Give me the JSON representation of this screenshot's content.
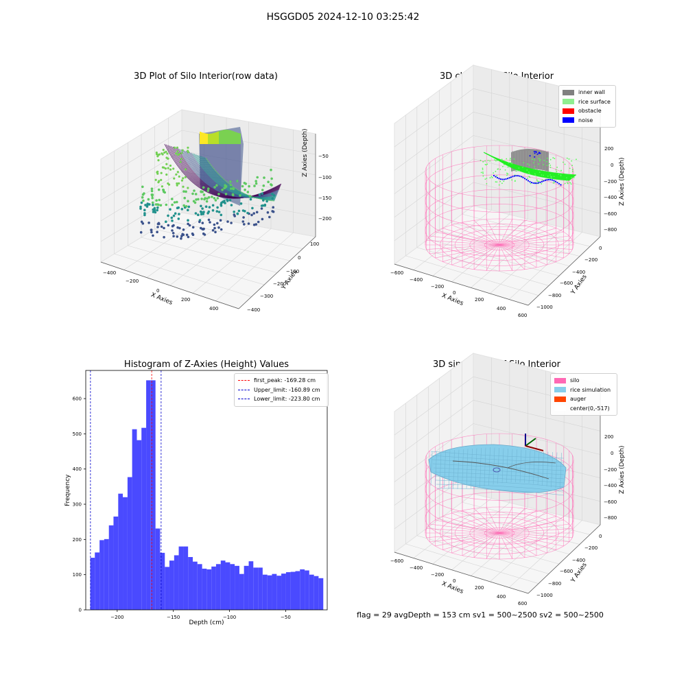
{
  "suptitle": "HSGGD05 2024-12-10 03:25:42",
  "status_line": "flag = 29  avgDepth = 153 cm  sv1 = 500~2500  sv2 = 500~2500",
  "panels": {
    "raw": {
      "title": "3D Plot of Silo Interior(row data)",
      "xlabel": "X Axies",
      "ylabel": "Y Axies",
      "zlabel": "Z Axies (Depth)",
      "xticks": [
        "−400",
        "−200",
        "0",
        "200",
        "400"
      ],
      "yticks": [
        "100",
        "0",
        "−100",
        "−200",
        "−300",
        "−400"
      ],
      "zticks": [
        "−50",
        "−100",
        "−150",
        "−200"
      ]
    },
    "classify": {
      "title": "3D classify of Silo Interior",
      "xlabel": "X Axies",
      "ylabel": "Y Axies",
      "zlabel": "Z Axies (Depth)",
      "xticks": [
        "−600",
        "−400",
        "−200",
        "0",
        "200",
        "400",
        "600"
      ],
      "yticks": [
        "0",
        "−200",
        "−400",
        "−600",
        "−800",
        "−1000"
      ],
      "zticks": [
        "200",
        "0",
        "−200",
        "−400",
        "−600",
        "−800"
      ],
      "legend": [
        {
          "label": "inner wall",
          "color": "#808080"
        },
        {
          "label": "rice surface",
          "color": "#90ee90"
        },
        {
          "label": "obstacle",
          "color": "#ff0000"
        },
        {
          "label": "noise",
          "color": "#0000ff"
        }
      ]
    },
    "simulation": {
      "title": "3D simulation of Silo Interior",
      "xlabel": "X Axies",
      "ylabel": "Y Axies",
      "zlabel": "Z Axies (Depth)",
      "xticks": [
        "−600",
        "−400",
        "−200",
        "0",
        "200",
        "400",
        "600"
      ],
      "yticks": [
        "0",
        "−200",
        "−400",
        "−600",
        "−800",
        "−1000"
      ],
      "zticks": [
        "200",
        "0",
        "−200",
        "−400",
        "−600",
        "−800"
      ],
      "legend": [
        {
          "label": "silo",
          "color": "#ff69b4"
        },
        {
          "label": "rice simulation",
          "color": "#87ceeb"
        },
        {
          "label": "auger",
          "color": "#ff4500"
        },
        {
          "label": "center(0,-517)",
          "color": "#ffffff"
        }
      ]
    }
  },
  "chart_data": {
    "type": "bar",
    "title": "Histogram of Z-Axies (Height) Values",
    "xlabel": "Depth (cm)",
    "ylabel": "Frequency",
    "xlim": [
      -228,
      -13
    ],
    "ylim": [
      0,
      680
    ],
    "xticks": [
      -200,
      -150,
      -100,
      -50
    ],
    "xtick_labels": [
      "−200",
      "−150",
      "−100",
      "−50"
    ],
    "yticks": [
      0,
      100,
      200,
      300,
      400,
      500,
      600
    ],
    "bar_color": "#4a4aff",
    "bin_edges": [
      -224,
      -219.9,
      -215.7,
      -211.6,
      -207.4,
      -203.3,
      -199.1,
      -195,
      -190.8,
      -186.7,
      -182.5,
      -178.4,
      -174.2,
      -170.1,
      -165.9,
      -161.8,
      -157.6,
      -153.5,
      -149.3,
      -145.2,
      -141,
      -136.9,
      -132.7,
      -128.6,
      -124.4,
      -120.3,
      -116.1,
      -112,
      -107.8,
      -103.7,
      -99.5,
      -95.4,
      -91.2,
      -87.1,
      -82.9,
      -78.8,
      -74.6,
      -70.5,
      -66.3,
      -62.2,
      -58,
      -53.9,
      -49.7,
      -45.6,
      -41.4,
      -37.3,
      -33.1,
      -29,
      -24.8,
      -20.7,
      -16.5
    ],
    "counts": [
      148,
      163,
      198,
      201,
      240,
      265,
      330,
      320,
      377,
      513,
      482,
      517,
      652,
      652,
      231,
      162,
      122,
      140,
      155,
      180,
      180,
      150,
      137,
      130,
      117,
      115,
      123,
      130,
      140,
      135,
      130,
      125,
      102,
      125,
      138,
      120,
      120,
      100,
      98,
      102,
      97,
      103,
      107,
      108,
      110,
      115,
      112,
      100,
      96,
      90
    ],
    "lines": [
      {
        "label": "first_peak: -169.28 cm",
        "x": -169.28,
        "color": "#ff0000"
      },
      {
        "label": "Upper_limit: -160.89 cm",
        "x": -160.89,
        "color": "#0000cc"
      },
      {
        "label": "Lower_limit: -223.80 cm",
        "x": -223.8,
        "color": "#0000cc"
      }
    ]
  }
}
